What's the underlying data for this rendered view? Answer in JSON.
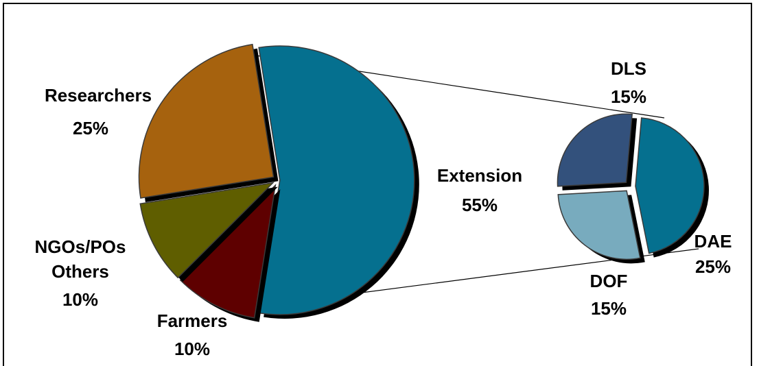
{
  "chart_data": {
    "type": "bar-of-pie",
    "main_pie": {
      "slices": [
        {
          "label": "Extension",
          "value": 55,
          "value_label": "55%",
          "color": "#05708F"
        },
        {
          "label": "Farmers",
          "value": 10,
          "value_label": "10%",
          "color": "#5E0000"
        },
        {
          "label_lines": [
            "NGOs/POs",
            "Others"
          ],
          "value": 10,
          "value_label": "10%",
          "color": "#5F5E00"
        },
        {
          "label": "Researchers",
          "value": 25,
          "value_label": "25%",
          "color": "#A6620E"
        }
      ]
    },
    "sub_pie": {
      "parent": "Extension",
      "slices": [
        {
          "label": "DAE",
          "value": 25,
          "value_label": "25%",
          "color": "#05708F"
        },
        {
          "label": "DOF",
          "value": 15,
          "value_label": "15%",
          "color": "#78ABBE"
        },
        {
          "label": "DLS",
          "value": 15,
          "value_label": "15%",
          "color": "#33517C"
        }
      ]
    }
  }
}
